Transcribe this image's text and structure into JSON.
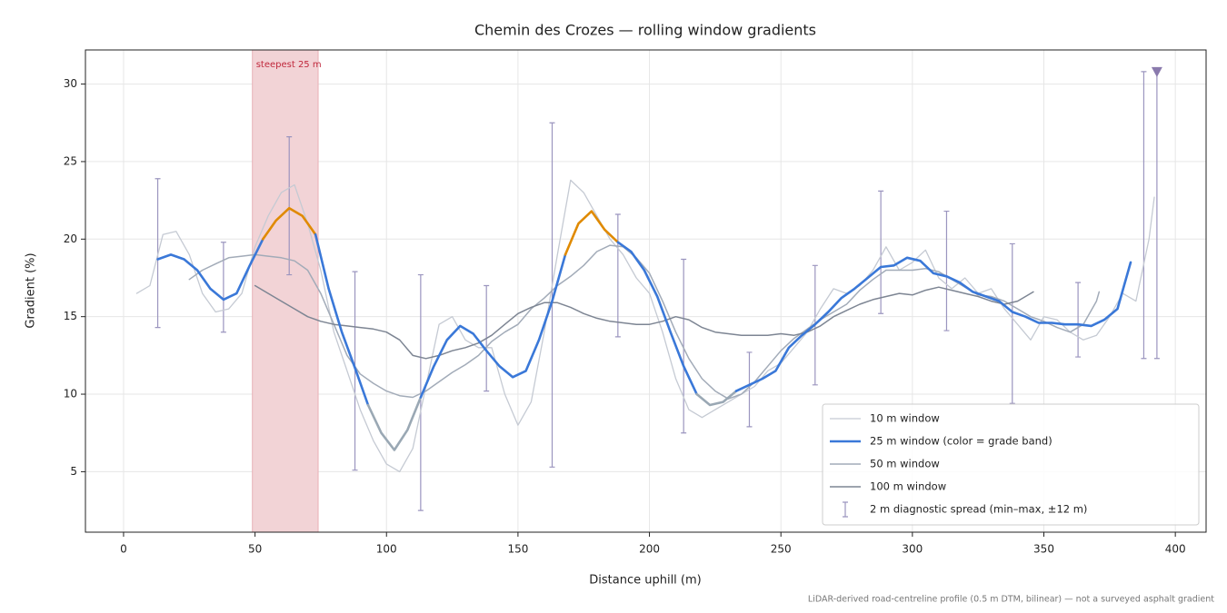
{
  "chart_data": {
    "type": "line",
    "title": "Chemin des Crozes — rolling window gradients",
    "xlabel": "Distance uphill (m)",
    "ylabel": "Gradient (%)",
    "footnote": "LiDAR-derived road-centreline profile (0.5 m DTM, bilinear) — not a surveyed asphalt gradient",
    "xlim": [
      -14.5,
      411.7
    ],
    "ylim": [
      1.1,
      32.2
    ],
    "xticks": [
      0,
      50,
      100,
      150,
      200,
      250,
      300,
      350,
      400
    ],
    "yticks": [
      5,
      10,
      15,
      20,
      25,
      30
    ],
    "grid": true,
    "legend": "lower right",
    "highlight": {
      "label": "steepest 25 m",
      "x": [
        49,
        74
      ],
      "color": "#f2d3d6",
      "label_color": "#c0283c"
    },
    "series": [
      {
        "name": "10 m window",
        "color": "#c5cad3",
        "x": [
          5,
          10,
          15,
          20,
          25,
          30,
          35,
          40,
          45,
          50,
          55,
          60,
          65,
          70,
          75,
          80,
          85,
          90,
          95,
          100,
          105,
          110,
          115,
          120,
          125,
          130,
          135,
          140,
          145,
          150,
          155,
          160,
          165,
          170,
          175,
          180,
          185,
          190,
          195,
          200,
          205,
          210,
          215,
          220,
          225,
          230,
          235,
          240,
          245,
          250,
          255,
          260,
          265,
          270,
          275,
          280,
          285,
          290,
          295,
          300,
          305,
          310,
          315,
          320,
          325,
          330,
          335,
          340,
          345,
          350,
          355,
          360,
          365,
          370,
          375,
          380,
          385,
          390,
          392
        ],
        "values": [
          16.5,
          17.0,
          20.3,
          20.5,
          19.0,
          16.5,
          15.3,
          15.5,
          16.5,
          19.5,
          21.5,
          23.0,
          23.5,
          21.0,
          18.0,
          14.0,
          11.5,
          9.0,
          7.0,
          5.5,
          5.0,
          6.5,
          10.5,
          14.5,
          15.0,
          13.5,
          13.0,
          13.0,
          10.0,
          8.0,
          9.5,
          14.0,
          19.0,
          23.8,
          23.0,
          21.5,
          20.0,
          19.0,
          17.5,
          16.5,
          14.0,
          11.0,
          9.0,
          8.5,
          9.0,
          9.5,
          10.0,
          10.5,
          11.5,
          12.0,
          13.0,
          14.0,
          15.5,
          16.8,
          16.5,
          17.0,
          18.0,
          19.5,
          18.0,
          18.5,
          19.3,
          17.5,
          16.8,
          17.5,
          16.5,
          16.8,
          15.5,
          14.5,
          13.5,
          15.0,
          14.8,
          14.0,
          13.5,
          13.8,
          15.0,
          16.5,
          16.0,
          20.0,
          22.7
        ]
      },
      {
        "name": "25 m window (color = grade band)",
        "color": "#3a78d8",
        "grade_bands": [
          {
            "below": 10,
            "color": "#9aa8b4"
          },
          {
            "below": 20,
            "color": "#3a78d8"
          },
          {
            "color": "#e08a00"
          }
        ],
        "x": [
          13,
          18,
          23,
          28,
          33,
          38,
          43,
          48,
          53,
          58,
          63,
          68,
          73,
          78,
          83,
          88,
          93,
          98,
          103,
          108,
          113,
          118,
          123,
          128,
          133,
          138,
          143,
          148,
          153,
          158,
          163,
          168,
          173,
          178,
          183,
          188,
          193,
          198,
          203,
          208,
          213,
          218,
          223,
          228,
          233,
          238,
          243,
          248,
          253,
          258,
          263,
          268,
          273,
          278,
          283,
          288,
          293,
          298,
          303,
          308,
          313,
          318,
          323,
          328,
          333,
          338,
          343,
          348,
          353,
          358,
          363,
          368,
          373,
          378,
          383
        ],
        "values": [
          18.7,
          19.0,
          18.7,
          18.0,
          16.8,
          16.1,
          16.5,
          18.3,
          20.0,
          21.2,
          22.0,
          21.5,
          20.3,
          16.8,
          14.0,
          11.7,
          9.3,
          7.5,
          6.4,
          7.7,
          9.8,
          11.8,
          13.5,
          14.4,
          13.9,
          12.8,
          11.8,
          11.1,
          11.5,
          13.5,
          16.0,
          19.0,
          21.0,
          21.8,
          20.6,
          19.8,
          19.2,
          18.0,
          16.3,
          14.0,
          11.8,
          10.0,
          9.3,
          9.5,
          10.2,
          10.6,
          11.0,
          11.5,
          13.0,
          13.8,
          14.5,
          15.3,
          16.2,
          16.8,
          17.5,
          18.2,
          18.3,
          18.8,
          18.6,
          17.8,
          17.6,
          17.2,
          16.6,
          16.3,
          16.0,
          15.3,
          15.0,
          14.6,
          14.6,
          14.5,
          14.5,
          14.4,
          14.8,
          15.5,
          18.5
        ]
      },
      {
        "name": "50 m window",
        "color": "#a2abb8",
        "x": [
          25,
          30,
          35,
          40,
          45,
          50,
          55,
          60,
          65,
          70,
          75,
          80,
          85,
          90,
          95,
          100,
          105,
          110,
          115,
          120,
          125,
          130,
          135,
          140,
          145,
          150,
          155,
          160,
          165,
          170,
          175,
          180,
          185,
          190,
          195,
          200,
          205,
          210,
          215,
          220,
          225,
          230,
          235,
          240,
          245,
          250,
          255,
          260,
          265,
          270,
          275,
          280,
          285,
          290,
          295,
          300,
          305,
          310,
          315,
          320,
          325,
          330,
          335,
          340,
          345,
          350,
          355,
          360,
          365,
          370,
          371
        ],
        "values": [
          17.4,
          18.0,
          18.4,
          18.8,
          18.9,
          19.0,
          18.9,
          18.8,
          18.6,
          18.0,
          16.5,
          14.5,
          12.5,
          11.3,
          10.7,
          10.2,
          9.9,
          9.8,
          10.2,
          10.8,
          11.4,
          11.9,
          12.5,
          13.4,
          14.0,
          14.5,
          15.5,
          16.2,
          17.0,
          17.6,
          18.3,
          19.2,
          19.6,
          19.5,
          18.8,
          17.8,
          16.0,
          14.0,
          12.3,
          11.0,
          10.2,
          9.7,
          10.0,
          10.8,
          11.8,
          12.8,
          13.6,
          14.2,
          14.8,
          15.3,
          15.8,
          16.7,
          17.4,
          18.0,
          18.0,
          18.0,
          18.1,
          17.9,
          17.4,
          16.9,
          16.4,
          16.3,
          16.0,
          15.5,
          15.0,
          14.7,
          14.3,
          14.0,
          14.5,
          16.0,
          16.6
        ]
      },
      {
        "name": "100 m window",
        "color": "#7d8593",
        "x": [
          50,
          55,
          60,
          65,
          70,
          75,
          80,
          85,
          90,
          95,
          100,
          105,
          110,
          115,
          120,
          125,
          130,
          135,
          140,
          145,
          150,
          155,
          160,
          165,
          170,
          175,
          180,
          185,
          190,
          195,
          200,
          205,
          210,
          215,
          220,
          225,
          230,
          235,
          240,
          245,
          250,
          255,
          260,
          265,
          270,
          275,
          280,
          285,
          290,
          295,
          300,
          305,
          310,
          315,
          320,
          325,
          330,
          335,
          340,
          345,
          346
        ],
        "values": [
          17.0,
          16.5,
          16.0,
          15.5,
          15.0,
          14.7,
          14.5,
          14.4,
          14.3,
          14.2,
          14.0,
          13.5,
          12.5,
          12.3,
          12.5,
          12.8,
          13.0,
          13.3,
          13.8,
          14.5,
          15.2,
          15.6,
          15.9,
          15.9,
          15.6,
          15.2,
          14.9,
          14.7,
          14.6,
          14.5,
          14.5,
          14.7,
          15.0,
          14.8,
          14.3,
          14.0,
          13.9,
          13.8,
          13.8,
          13.8,
          13.9,
          13.8,
          14.0,
          14.4,
          15.0,
          15.4,
          15.8,
          16.1,
          16.3,
          16.5,
          16.4,
          16.7,
          16.9,
          16.7,
          16.5,
          16.3,
          16.0,
          15.8,
          16.0,
          16.5,
          16.6
        ]
      }
    ],
    "spread": {
      "name": "2 m diagnostic spread (min–max, ±12 m)",
      "color": "#9b95bf",
      "x": [
        13,
        38,
        63,
        88,
        113,
        138,
        163,
        188,
        213,
        238,
        263,
        288,
        313,
        338,
        363,
        388,
        393
      ],
      "min": [
        14.3,
        14.0,
        17.7,
        5.1,
        2.5,
        10.2,
        5.3,
        13.7,
        7.5,
        7.9,
        10.6,
        15.2,
        14.1,
        9.4,
        12.4,
        12.3,
        12.3
      ],
      "max": [
        23.9,
        19.8,
        26.6,
        17.9,
        17.7,
        17.0,
        27.5,
        21.6,
        18.7,
        12.7,
        18.3,
        23.1,
        21.8,
        19.7,
        17.2,
        30.8,
        30.8
      ]
    },
    "peak_marker": {
      "x": 393,
      "y": 30.8,
      "color": "#8a7aad"
    }
  }
}
